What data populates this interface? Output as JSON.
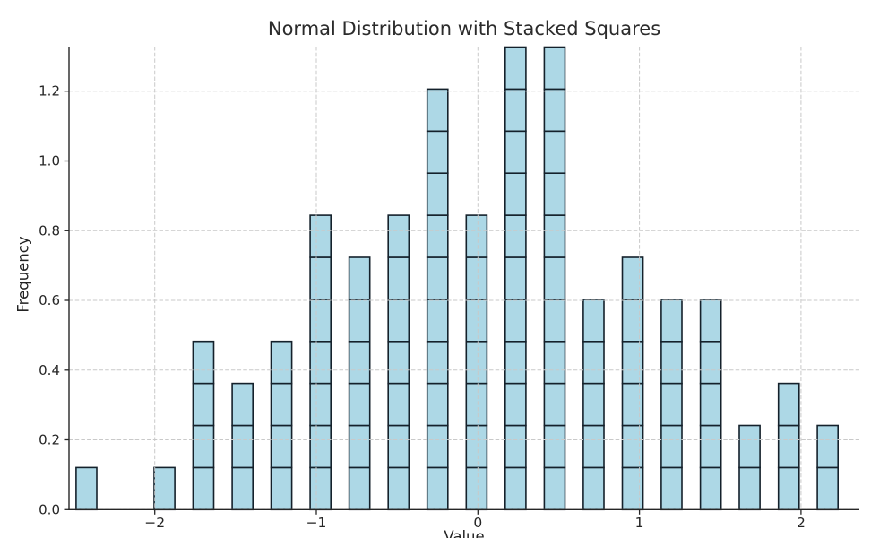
{
  "chart_data": {
    "type": "bar",
    "style": "histogram-of-stacked-squares",
    "title": "Normal Distribution with Stacked Squares",
    "xlabel": "Value",
    "ylabel": "Frequency",
    "square_unit": 0.1206,
    "bar_width_data": 0.128,
    "bin_centers": [
      -2.423,
      -2.182,
      -1.94,
      -1.699,
      -1.457,
      -1.216,
      -0.974,
      -0.733,
      -0.491,
      -0.25,
      -0.008,
      0.233,
      0.475,
      0.716,
      0.958,
      1.199,
      1.441,
      1.682,
      1.924,
      2.165
    ],
    "counts": [
      1,
      0,
      1,
      4,
      3,
      4,
      7,
      6,
      7,
      10,
      7,
      11,
      11,
      5,
      6,
      5,
      5,
      2,
      3,
      2
    ],
    "values": [
      0.121,
      0,
      0.121,
      0.482,
      0.362,
      0.482,
      0.844,
      0.724,
      0.844,
      1.206,
      0.844,
      1.327,
      1.327,
      0.603,
      0.724,
      0.603,
      0.603,
      0.241,
      0.362,
      0.241
    ],
    "x_ticks": [
      -2,
      -1,
      0,
      1,
      2
    ],
    "x_tick_labels": [
      "−2",
      "−1",
      "0",
      "1",
      "2"
    ],
    "y_ticks": [
      0.0,
      0.2,
      0.4,
      0.6,
      0.8,
      1.0,
      1.2
    ],
    "y_tick_labels": [
      "0.0",
      "0.2",
      "0.4",
      "0.6",
      "0.8",
      "1.0",
      "1.2"
    ],
    "xlim": [
      -2.53,
      2.36
    ],
    "ylim": [
      0,
      1.33
    ],
    "grid": true,
    "grid_style": "dashed",
    "legend": "none",
    "colors": {
      "bar_fill": "#ADD8E6",
      "bar_edge": "#14212B",
      "grid": "#C9C9C9",
      "spine": "#262626",
      "text": "#262626"
    }
  }
}
